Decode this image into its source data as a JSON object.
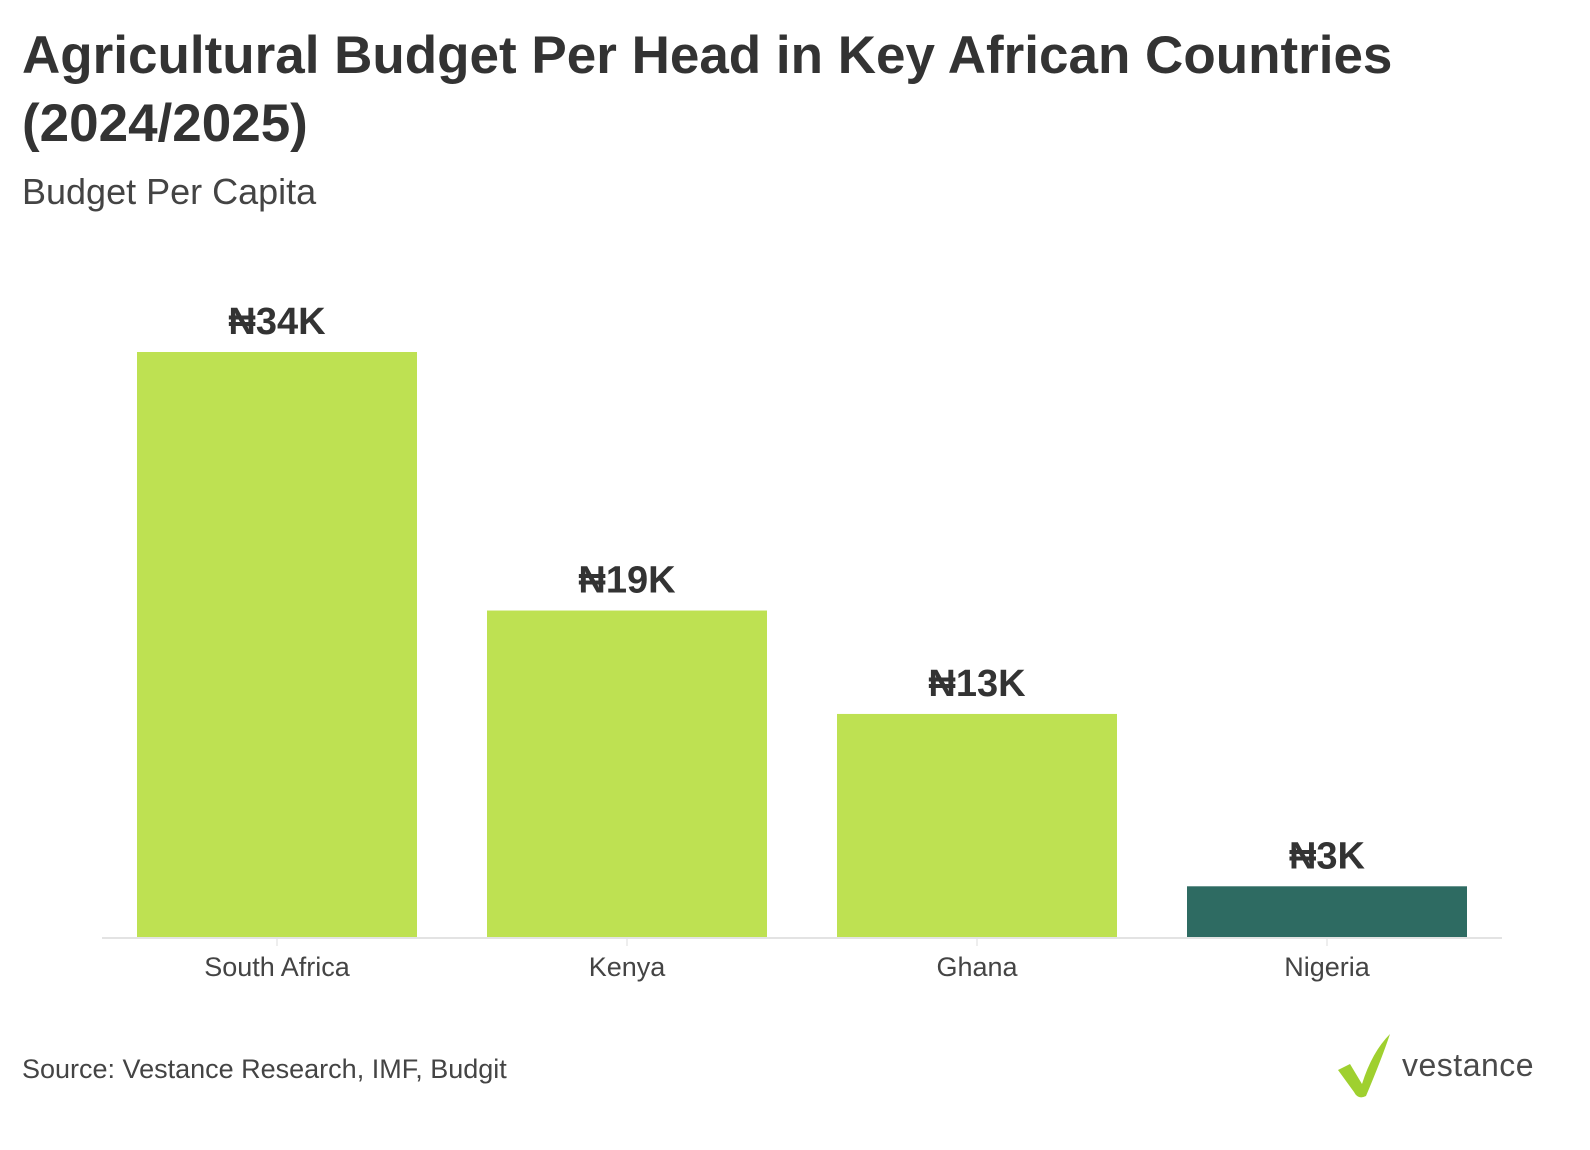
{
  "header": {
    "title": "Agricultural Budget Per Head in Key African Countries (2024/2025)",
    "subtitle": "Budget Per Capita"
  },
  "footer": {
    "source": "Source: Vestance Research, IMF, Budgit",
    "logo_text": "vestance",
    "logo_icon": "checkmark-icon"
  },
  "colors": {
    "bar": "#BEE152",
    "highlight_bar": "#2E6B62",
    "logo_green": "#9FD02F"
  },
  "chart_data": {
    "type": "bar",
    "title": "Agricultural Budget Per Head in Key African Countries (2024/2025)",
    "subtitle": "Budget Per Capita",
    "categories": [
      "South Africa",
      "Kenya",
      "Ghana",
      "Nigeria"
    ],
    "values": [
      34000,
      19000,
      13000,
      3000
    ],
    "data_labels": [
      "₦34K",
      "₦19K",
      "₦13K",
      "₦3K"
    ],
    "highlight_index": 3,
    "ylim": [
      0,
      36000
    ],
    "grid": false,
    "legend": "none"
  }
}
